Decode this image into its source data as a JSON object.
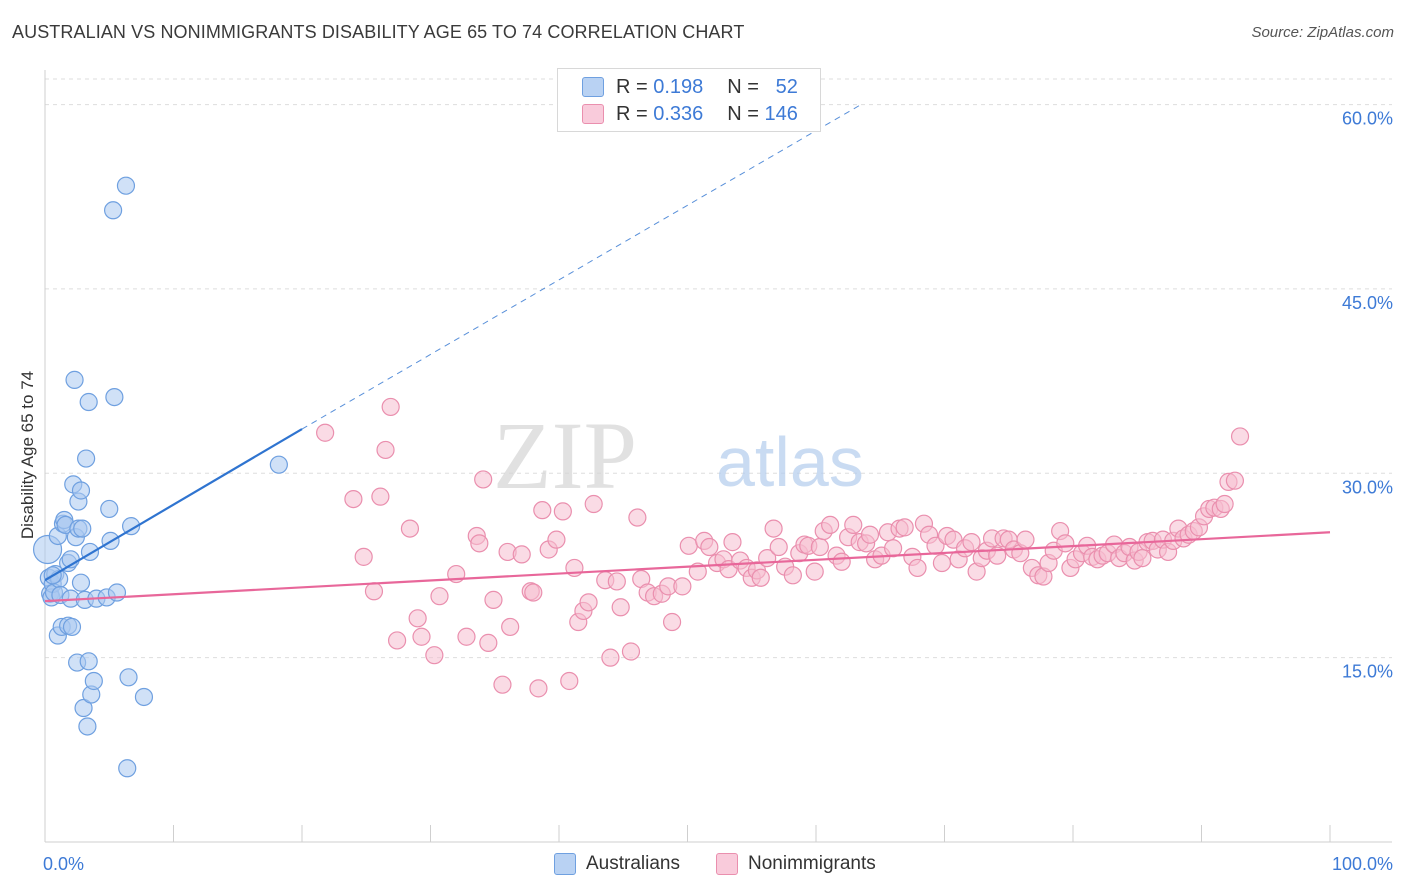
{
  "title": "AUSTRALIAN VS NONIMMIGRANTS DISABILITY AGE 65 TO 74 CORRELATION CHART",
  "source": "Source: ZipAtlas.com",
  "watermark": {
    "zip": "ZIP",
    "atlas": "atlas"
  },
  "legend": {
    "australians": {
      "r_label": "R =",
      "r_value": "0.198",
      "n_label": "N =",
      "n_value": "52"
    },
    "nonimmigrants": {
      "r_label": "R =",
      "r_value": "0.336",
      "n_label": "N =",
      "n_value": "146"
    }
  },
  "bottom_legend": {
    "australians": "Australians",
    "nonimmigrants": "Nonimmigrants"
  },
  "colors": {
    "australians_fill": "#a9c8f0",
    "australians_stroke": "#6fa0e0",
    "australians_line": "#2f74d0",
    "nonimmigrants_fill": "#f6bdd0",
    "nonimmigrants_stroke": "#ea8fae",
    "nonimmigrants_line": "#e8679a",
    "tick_label": "#3d7ad6",
    "grid": "#dddddd"
  },
  "chart_data": {
    "type": "scatter",
    "title": "AUSTRALIAN VS NONIMMIGRANTS DISABILITY AGE 65 TO 74 CORRELATION CHART",
    "xlabel": "",
    "ylabel": "Disability Age 65 to 74",
    "xlim": [
      0,
      100
    ],
    "ylim": [
      0,
      62
    ],
    "x_tick_labels": [
      "0.0%",
      "100.0%"
    ],
    "y_ticks": [
      15,
      30,
      45,
      60
    ],
    "y_tick_labels": [
      "15.0%",
      "30.0%",
      "45.0%",
      "60.0%"
    ],
    "grid": true,
    "legend_position": "top-center",
    "series": [
      {
        "name": "Australians",
        "points": [
          [
            0.2,
            23.8
          ],
          [
            0.3,
            21.5
          ],
          [
            0.4,
            20.2
          ],
          [
            0.5,
            19.9
          ],
          [
            0.6,
            21.0
          ],
          [
            0.7,
            20.3
          ],
          [
            0.8,
            21.8
          ],
          [
            1.0,
            24.9
          ],
          [
            1.0,
            16.8
          ],
          [
            1.1,
            21.4
          ],
          [
            1.2,
            20.1
          ],
          [
            1.3,
            17.5
          ],
          [
            1.4,
            25.9
          ],
          [
            1.5,
            26.2
          ],
          [
            1.6,
            25.8
          ],
          [
            1.8,
            22.7
          ],
          [
            1.8,
            17.6
          ],
          [
            2.0,
            19.8
          ],
          [
            2.0,
            23.0
          ],
          [
            2.1,
            17.5
          ],
          [
            2.2,
            29.1
          ],
          [
            2.3,
            37.6
          ],
          [
            2.4,
            24.8
          ],
          [
            2.5,
            14.6
          ],
          [
            2.6,
            25.5
          ],
          [
            2.6,
            27.7
          ],
          [
            2.8,
            21.1
          ],
          [
            2.8,
            28.6
          ],
          [
            2.9,
            25.5
          ],
          [
            3.0,
            10.9
          ],
          [
            3.1,
            19.7
          ],
          [
            3.2,
            31.2
          ],
          [
            3.3,
            9.4
          ],
          [
            3.4,
            14.7
          ],
          [
            3.4,
            35.8
          ],
          [
            3.5,
            23.6
          ],
          [
            3.6,
            12.0
          ],
          [
            3.8,
            13.1
          ],
          [
            4.0,
            19.8
          ],
          [
            4.8,
            19.9
          ],
          [
            5.0,
            27.1
          ],
          [
            5.1,
            24.5
          ],
          [
            5.3,
            51.4
          ],
          [
            5.4,
            36.2
          ],
          [
            5.6,
            20.3
          ],
          [
            6.3,
            53.4
          ],
          [
            6.4,
            6.0
          ],
          [
            6.5,
            13.4
          ],
          [
            6.7,
            25.7
          ],
          [
            7.7,
            11.8
          ],
          [
            18.2,
            30.7
          ],
          [
            0.6,
            21.7
          ]
        ]
      },
      {
        "name": "Nonimmigrants",
        "points": [
          [
            21.8,
            33.3
          ],
          [
            24.0,
            27.9
          ],
          [
            24.8,
            23.2
          ],
          [
            25.6,
            20.4
          ],
          [
            26.1,
            28.1
          ],
          [
            26.5,
            31.9
          ],
          [
            26.9,
            35.4
          ],
          [
            27.4,
            16.4
          ],
          [
            28.4,
            25.5
          ],
          [
            29.0,
            18.2
          ],
          [
            29.3,
            16.7
          ],
          [
            30.3,
            15.2
          ],
          [
            30.7,
            20.0
          ],
          [
            32.0,
            21.8
          ],
          [
            32.8,
            16.7
          ],
          [
            33.6,
            24.9
          ],
          [
            33.8,
            24.3
          ],
          [
            34.1,
            29.5
          ],
          [
            34.5,
            16.2
          ],
          [
            34.9,
            19.7
          ],
          [
            35.6,
            12.8
          ],
          [
            36.0,
            23.6
          ],
          [
            36.2,
            17.5
          ],
          [
            37.1,
            23.4
          ],
          [
            37.8,
            20.4
          ],
          [
            38.0,
            20.3
          ],
          [
            38.4,
            12.5
          ],
          [
            38.7,
            27.0
          ],
          [
            39.2,
            23.8
          ],
          [
            39.8,
            24.6
          ],
          [
            40.3,
            26.9
          ],
          [
            40.8,
            13.1
          ],
          [
            41.2,
            22.3
          ],
          [
            41.5,
            17.9
          ],
          [
            41.9,
            18.8
          ],
          [
            42.3,
            19.5
          ],
          [
            42.7,
            27.5
          ],
          [
            43.6,
            21.3
          ],
          [
            44.0,
            15.0
          ],
          [
            44.5,
            21.2
          ],
          [
            44.8,
            19.1
          ],
          [
            45.6,
            15.5
          ],
          [
            46.1,
            26.4
          ],
          [
            46.4,
            21.4
          ],
          [
            46.9,
            20.3
          ],
          [
            47.4,
            20.0
          ],
          [
            48.0,
            20.2
          ],
          [
            48.5,
            20.8
          ],
          [
            48.8,
            17.9
          ],
          [
            49.6,
            20.8
          ],
          [
            50.1,
            24.1
          ],
          [
            50.8,
            22.0
          ],
          [
            51.3,
            24.5
          ],
          [
            51.7,
            24.0
          ],
          [
            52.3,
            22.7
          ],
          [
            52.8,
            23.0
          ],
          [
            53.2,
            22.2
          ],
          [
            53.5,
            24.4
          ],
          [
            54.1,
            22.9
          ],
          [
            54.6,
            22.3
          ],
          [
            55.0,
            21.5
          ],
          [
            55.4,
            22.1
          ],
          [
            55.7,
            21.5
          ],
          [
            56.2,
            23.1
          ],
          [
            56.7,
            25.5
          ],
          [
            57.1,
            24.0
          ],
          [
            57.6,
            22.4
          ],
          [
            58.2,
            21.7
          ],
          [
            58.7,
            23.5
          ],
          [
            59.1,
            24.2
          ],
          [
            59.4,
            24.1
          ],
          [
            59.9,
            22.0
          ],
          [
            60.3,
            24.0
          ],
          [
            60.6,
            25.3
          ],
          [
            61.1,
            25.8
          ],
          [
            61.6,
            23.3
          ],
          [
            62.0,
            22.8
          ],
          [
            62.5,
            24.8
          ],
          [
            62.9,
            25.8
          ],
          [
            63.4,
            24.4
          ],
          [
            63.9,
            24.3
          ],
          [
            64.2,
            25.0
          ],
          [
            64.6,
            23.0
          ],
          [
            65.1,
            23.3
          ],
          [
            65.6,
            25.2
          ],
          [
            66.0,
            23.9
          ],
          [
            66.5,
            25.5
          ],
          [
            66.9,
            25.6
          ],
          [
            67.5,
            23.2
          ],
          [
            67.9,
            22.3
          ],
          [
            68.4,
            25.9
          ],
          [
            68.8,
            25.0
          ],
          [
            69.3,
            24.1
          ],
          [
            69.8,
            22.7
          ],
          [
            70.2,
            24.9
          ],
          [
            70.7,
            24.6
          ],
          [
            71.1,
            23.0
          ],
          [
            71.6,
            23.9
          ],
          [
            72.1,
            24.4
          ],
          [
            72.5,
            22.0
          ],
          [
            72.9,
            23.1
          ],
          [
            73.3,
            23.7
          ],
          [
            73.7,
            24.7
          ],
          [
            74.1,
            23.3
          ],
          [
            74.6,
            24.7
          ],
          [
            75.0,
            24.6
          ],
          [
            75.4,
            23.8
          ],
          [
            75.9,
            23.5
          ],
          [
            76.3,
            24.6
          ],
          [
            76.8,
            22.3
          ],
          [
            77.3,
            21.7
          ],
          [
            77.7,
            21.6
          ],
          [
            78.1,
            22.7
          ],
          [
            78.5,
            23.7
          ],
          [
            79.0,
            25.3
          ],
          [
            79.4,
            24.3
          ],
          [
            79.8,
            22.3
          ],
          [
            80.2,
            23.0
          ],
          [
            80.7,
            23.5
          ],
          [
            81.1,
            24.1
          ],
          [
            81.5,
            23.2
          ],
          [
            81.9,
            23.0
          ],
          [
            82.3,
            23.3
          ],
          [
            82.7,
            23.5
          ],
          [
            83.2,
            24.2
          ],
          [
            83.6,
            23.1
          ],
          [
            84.0,
            23.5
          ],
          [
            84.4,
            24.0
          ],
          [
            84.8,
            22.9
          ],
          [
            85.1,
            23.6
          ],
          [
            85.4,
            23.1
          ],
          [
            85.8,
            24.4
          ],
          [
            86.2,
            24.5
          ],
          [
            86.6,
            23.8
          ],
          [
            87.0,
            24.6
          ],
          [
            87.4,
            23.6
          ],
          [
            87.8,
            24.5
          ],
          [
            88.2,
            25.5
          ],
          [
            88.6,
            24.7
          ],
          [
            89.0,
            25.0
          ],
          [
            89.4,
            25.3
          ],
          [
            89.8,
            25.6
          ],
          [
            90.2,
            26.5
          ],
          [
            90.6,
            27.1
          ],
          [
            91.0,
            27.2
          ],
          [
            91.5,
            27.1
          ],
          [
            91.8,
            27.5
          ],
          [
            92.1,
            29.3
          ],
          [
            92.6,
            29.4
          ],
          [
            93.0,
            33.0
          ]
        ]
      }
    ],
    "trend_lines": [
      {
        "series": "Australians",
        "x": [
          0,
          20
        ],
        "y": [
          21.3,
          33.6
        ],
        "dashed_extension_to": [
          63.5,
          60.0
        ]
      },
      {
        "series": "Nonimmigrants",
        "x": [
          0,
          100
        ],
        "y": [
          19.6,
          25.2
        ]
      }
    ]
  }
}
